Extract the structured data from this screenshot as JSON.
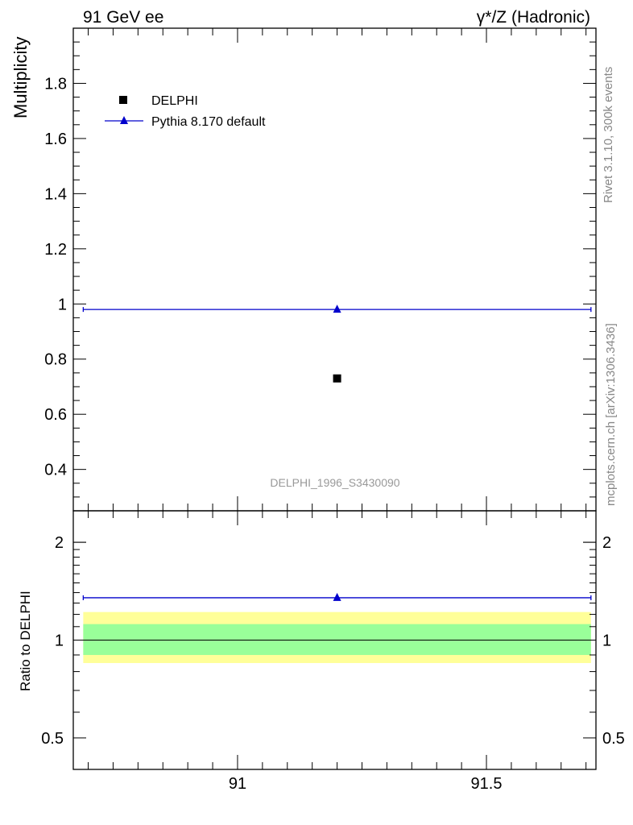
{
  "header": {
    "left": "91 GeV ee",
    "right": "γ*/Z (Hadronic)"
  },
  "side_labels": {
    "rivet": "Rivet 3.1.10,  300k events",
    "source": "mcplots.cern.ch [arXiv:1306.3436]"
  },
  "analysis_id": "DELPHI_1996_S3430090",
  "chart_data": [
    {
      "type": "scatter",
      "panel": "main",
      "ylabel": "Multiplicity",
      "xlim": [
        90.67,
        91.72
      ],
      "ylim": [
        0.25,
        2.0
      ],
      "y_ticks": [
        0.4,
        0.6,
        0.8,
        1.0,
        1.2,
        1.4,
        1.6,
        1.8
      ],
      "y_tick_labels": [
        "0.4",
        "0.6",
        "0.8",
        "1",
        "1.2",
        "1.4",
        "1.6",
        "1.8"
      ],
      "legend_position": "top-left",
      "series": [
        {
          "name": "DELPHI",
          "marker": "square",
          "color": "#000000",
          "points": [
            {
              "x": 91.2,
              "y": 0.73
            }
          ]
        },
        {
          "name": "Pythia 8.170 default",
          "marker": "triangle",
          "color": "#0000cc",
          "points": [
            {
              "x": 91.2,
              "y": 0.98,
              "xmin": 90.69,
              "xmax": 91.71
            }
          ]
        }
      ]
    },
    {
      "type": "scatter",
      "panel": "ratio",
      "ylabel": "Ratio to DELPHI",
      "yscale": "log",
      "ylim": [
        0.4,
        2.5
      ],
      "y_ticks": [
        0.5,
        1,
        2
      ],
      "y_tick_labels": [
        "0.5",
        "1",
        "2"
      ],
      "x_ticks": [
        91,
        91.5
      ],
      "x_tick_labels": [
        "91",
        "91.5"
      ],
      "bands": [
        {
          "label": "total uncertainty",
          "color": "#ffff99",
          "ymin": 0.85,
          "ymax": 1.22
        },
        {
          "label": "stat uncertainty",
          "color": "#99ff99",
          "ymin": 0.9,
          "ymax": 1.12
        }
      ],
      "series": [
        {
          "name": "Pythia 8.170 default",
          "marker": "triangle",
          "color": "#0000cc",
          "points": [
            {
              "x": 91.2,
              "y": 1.35,
              "xmin": 90.69,
              "xmax": 91.71
            }
          ]
        }
      ]
    }
  ]
}
